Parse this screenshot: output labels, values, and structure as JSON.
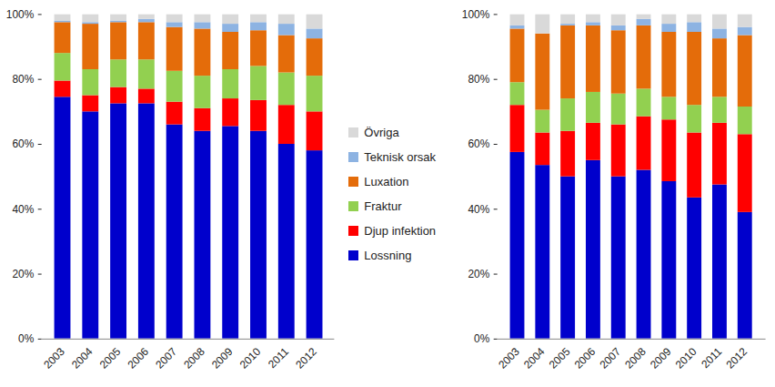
{
  "chart_data": [
    {
      "type": "bar",
      "stacked": true,
      "legend": "right",
      "categories": [
        "2003",
        "2004",
        "2005",
        "2006",
        "2007",
        "2008",
        "2009",
        "2010",
        "2011",
        "2012"
      ],
      "ylim": [
        0,
        100
      ],
      "yticks": [
        {
          "value": 0,
          "label": "0%"
        },
        {
          "value": 20,
          "label": "20%"
        },
        {
          "value": 40,
          "label": "40%"
        },
        {
          "value": 60,
          "label": "60%"
        },
        {
          "value": 80,
          "label": "80%"
        },
        {
          "value": 100,
          "label": "100%"
        }
      ],
      "series": [
        {
          "name": "Lossning",
          "color": "#0000cc",
          "values": [
            74.5,
            70,
            72.5,
            72.5,
            66,
            64,
            65.5,
            64,
            60,
            58
          ]
        },
        {
          "name": "Djup infektion",
          "color": "#ff0000",
          "values": [
            5,
            5,
            5,
            4.5,
            7,
            7,
            8.5,
            9.5,
            12,
            12
          ]
        },
        {
          "name": "Fraktur",
          "color": "#92d050",
          "values": [
            8.5,
            8,
            8.5,
            9,
            9.5,
            10,
            9,
            10.5,
            10,
            11
          ]
        },
        {
          "name": "Luxation",
          "color": "#e46c0a",
          "values": [
            9.5,
            14,
            11.5,
            11.5,
            13.5,
            14.5,
            11.5,
            11,
            11.5,
            11.5
          ]
        },
        {
          "name": "Teknisk orsak",
          "color": "#8db3e2",
          "values": [
            0.5,
            0.5,
            0.5,
            1,
            1.5,
            2,
            2.5,
            2.5,
            3.5,
            3
          ]
        },
        {
          "name": "Övriga",
          "color": "#d9d9d9",
          "values": [
            2,
            2.5,
            2,
            1.5,
            2.5,
            2.5,
            3,
            2.5,
            3,
            4.5
          ]
        }
      ]
    },
    {
      "type": "bar",
      "stacked": true,
      "categories": [
        "2003",
        "2004",
        "2005",
        "2006",
        "2007",
        "2008",
        "2009",
        "2010",
        "2011",
        "2012"
      ],
      "ylim": [
        0,
        100
      ],
      "yticks": [
        {
          "value": 0,
          "label": "0%"
        },
        {
          "value": 20,
          "label": "20%"
        },
        {
          "value": 40,
          "label": "40%"
        },
        {
          "value": 60,
          "label": "60%"
        },
        {
          "value": 80,
          "label": "80%"
        },
        {
          "value": 100,
          "label": "100%"
        }
      ],
      "series": [
        {
          "name": "Lossning",
          "color": "#0000cc",
          "values": [
            57.5,
            53.5,
            50,
            55,
            50,
            52,
            48.5,
            43.5,
            47.5,
            39
          ]
        },
        {
          "name": "Djup infektion",
          "color": "#ff0000",
          "values": [
            14.5,
            10,
            14,
            11.5,
            16,
            16.5,
            19,
            20,
            19,
            24
          ]
        },
        {
          "name": "Fraktur",
          "color": "#92d050",
          "values": [
            7,
            7,
            10,
            9.5,
            9.5,
            8.5,
            7,
            8.5,
            8,
            8.5
          ]
        },
        {
          "name": "Luxation",
          "color": "#e46c0a",
          "values": [
            16.5,
            23.5,
            22.5,
            20.5,
            19.5,
            19.5,
            20,
            22.5,
            18,
            22
          ]
        },
        {
          "name": "Teknisk orsak",
          "color": "#8db3e2",
          "values": [
            1,
            0,
            0.5,
            1,
            1.5,
            2,
            2.5,
            3,
            3,
            2.5
          ]
        },
        {
          "name": "Övriga",
          "color": "#d9d9d9",
          "values": [
            3.5,
            6,
            3,
            2.5,
            3.5,
            1.5,
            3,
            2.5,
            4.5,
            4
          ]
        }
      ]
    }
  ]
}
